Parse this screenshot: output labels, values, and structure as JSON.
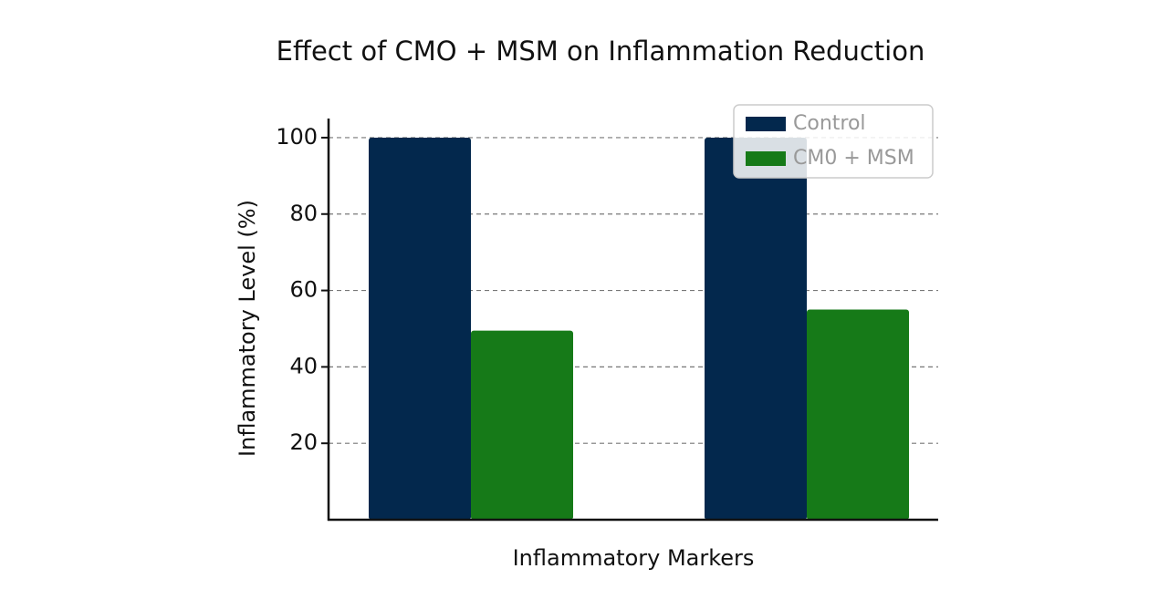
{
  "chart_data": {
    "type": "bar",
    "title": "Effect of CMO + MSM on Inflammation Reduction",
    "x_label": "Inflammatory Markers",
    "y_label": "Inflammatory Level (%)",
    "categories": [
      null,
      null
    ],
    "series": [
      {
        "name": "Control",
        "color": "#03284d",
        "values": [
          100,
          100
        ]
      },
      {
        "name": "CM0 + MSM",
        "color": "#167a18",
        "values": [
          49.5,
          55
        ]
      }
    ],
    "ylim": [
      0,
      105
    ],
    "yticks": [
      20,
      40,
      60,
      80,
      100
    ],
    "grid": true,
    "legend": "upper right"
  }
}
